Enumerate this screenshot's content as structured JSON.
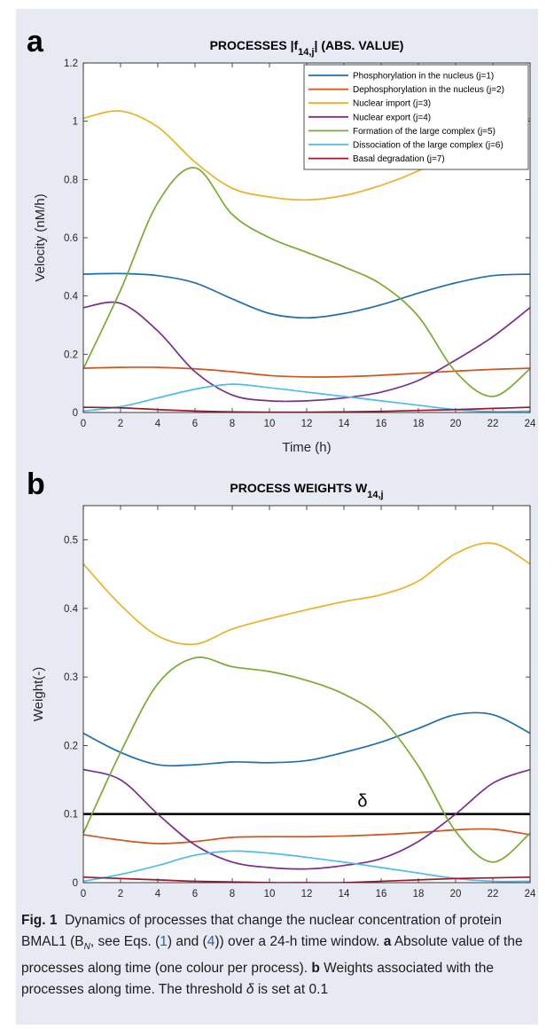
{
  "panels": [
    {
      "letter": "a",
      "title_prefix": "PROCESSES |f",
      "title_sub": "14,j",
      "title_suffix": "| (ABS. VALUE)"
    },
    {
      "letter": "b",
      "title_prefix": "PROCESS WEIGHTS W",
      "title_sub": "14,j",
      "title_suffix": ""
    }
  ],
  "caption": {
    "fig_label": "Fig. 1",
    "line1": "Dynamics of processes that change the nuclear concentration",
    "line2a": "of protein BMAL1 (B",
    "line2_sub": "N",
    "line2b": ", see Eqs. (",
    "ref1": "1",
    "line2c": ") and (",
    "ref2": "4",
    "line2d": ")) over a 24-h time window.",
    "a_label": "a",
    "a_text": "Absolute value of the processes along time (one colour per process).",
    "b_label": "b",
    "b_text": "Weights associated with the processes along time. The threshold",
    "b_delta": "δ",
    "b_text2": "is set at 0.1",
    "ref_color": "#2a5caa"
  },
  "chart_data": [
    {
      "type": "line",
      "title": "PROCESSES |f14,j| (ABS. VALUE)",
      "xlabel": "Time (h)",
      "ylabel": "Velocity (nM/h)",
      "xlim": [
        0,
        24
      ],
      "ylim": [
        0,
        1.2
      ],
      "xticks": [
        0,
        2,
        4,
        6,
        8,
        10,
        12,
        14,
        16,
        18,
        20,
        22,
        24
      ],
      "yticks": [
        0,
        0.2,
        0.4,
        0.6,
        0.8,
        1,
        1.2
      ],
      "ytick_labels": [
        "0",
        "0.2",
        "0.4",
        "0.6",
        "0.8",
        "1",
        "1.2"
      ],
      "legend_position": "top-right",
      "x": [
        0,
        2,
        4,
        6,
        8,
        10,
        12,
        14,
        16,
        18,
        20,
        22,
        24
      ],
      "series": [
        {
          "name": "Phosphorylation in the nucleus (j=1)",
          "color": "#1f6fb0",
          "values": [
            0.475,
            0.477,
            0.47,
            0.445,
            0.39,
            0.34,
            0.325,
            0.34,
            0.37,
            0.41,
            0.445,
            0.47,
            0.475
          ]
        },
        {
          "name": "Dephosphorylation in the nucleus (j=2)",
          "color": "#d2541e",
          "values": [
            0.152,
            0.155,
            0.155,
            0.15,
            0.14,
            0.127,
            0.122,
            0.123,
            0.128,
            0.135,
            0.142,
            0.148,
            0.152
          ]
        },
        {
          "name": "Nuclear import (j=3)",
          "color": "#eab12a",
          "values": [
            1.01,
            1.035,
            0.98,
            0.86,
            0.77,
            0.74,
            0.73,
            0.745,
            0.78,
            0.83,
            0.9,
            0.96,
            1.01
          ]
        },
        {
          "name": "Nuclear export (j=4)",
          "color": "#7b2e8e",
          "values": [
            0.36,
            0.375,
            0.28,
            0.14,
            0.06,
            0.04,
            0.04,
            0.05,
            0.07,
            0.11,
            0.18,
            0.26,
            0.36
          ]
        },
        {
          "name": "Formation of the large complex (j=5)",
          "color": "#78ab30",
          "values": [
            0.15,
            0.42,
            0.72,
            0.84,
            0.68,
            0.6,
            0.55,
            0.5,
            0.44,
            0.33,
            0.14,
            0.055,
            0.15
          ]
        },
        {
          "name": "Dissociation of the large complex (j=6)",
          "color": "#4cbde9",
          "values": [
            0.005,
            0.02,
            0.05,
            0.08,
            0.097,
            0.085,
            0.07,
            0.055,
            0.04,
            0.025,
            0.01,
            0.003,
            0.005
          ]
        },
        {
          "name": "Basal degradation (j=7)",
          "color": "#a3162c",
          "values": [
            0.018,
            0.016,
            0.01,
            0.005,
            0.002,
            0.001,
            0.001,
            0.002,
            0.004,
            0.007,
            0.01,
            0.014,
            0.018
          ]
        }
      ]
    },
    {
      "type": "line",
      "title": "PROCESS WEIGHTS W14,j",
      "xlabel": "Time (h)",
      "ylabel": "Weight(-)",
      "xlim": [
        0,
        24
      ],
      "ylim": [
        0,
        0.55
      ],
      "xticks": [
        0,
        2,
        4,
        6,
        8,
        10,
        12,
        14,
        16,
        18,
        20,
        22,
        24
      ],
      "yticks": [
        0,
        0.1,
        0.2,
        0.3,
        0.4,
        0.5
      ],
      "ytick_labels": [
        "0",
        "0.1",
        "0.2",
        "0.3",
        "0.4",
        "0.5"
      ],
      "threshold": {
        "value": 0.1,
        "label": "δ",
        "color": "#000000"
      },
      "x": [
        0,
        2,
        4,
        6,
        8,
        10,
        12,
        14,
        16,
        18,
        20,
        22,
        24
      ],
      "series": [
        {
          "name": "Phosphorylation in the nucleus (j=1)",
          "color": "#1f6fb0",
          "values": [
            0.218,
            0.19,
            0.172,
            0.172,
            0.176,
            0.175,
            0.178,
            0.19,
            0.205,
            0.225,
            0.245,
            0.245,
            0.218
          ]
        },
        {
          "name": "Dephosphorylation in the nucleus (j=2)",
          "color": "#d2541e",
          "values": [
            0.07,
            0.062,
            0.057,
            0.06,
            0.066,
            0.067,
            0.067,
            0.068,
            0.07,
            0.073,
            0.077,
            0.078,
            0.07
          ]
        },
        {
          "name": "Nuclear import (j=3)",
          "color": "#eab12a",
          "values": [
            0.465,
            0.405,
            0.36,
            0.348,
            0.37,
            0.385,
            0.398,
            0.41,
            0.42,
            0.44,
            0.48,
            0.495,
            0.465
          ]
        },
        {
          "name": "Nuclear export (j=4)",
          "color": "#7b2e8e",
          "values": [
            0.165,
            0.15,
            0.1,
            0.055,
            0.03,
            0.022,
            0.02,
            0.025,
            0.035,
            0.06,
            0.1,
            0.145,
            0.165
          ]
        },
        {
          "name": "Formation of the large complex (j=5)",
          "color": "#78ab30",
          "values": [
            0.072,
            0.19,
            0.29,
            0.328,
            0.315,
            0.308,
            0.295,
            0.275,
            0.24,
            0.17,
            0.075,
            0.03,
            0.072
          ]
        },
        {
          "name": "Dissociation of the large complex (j=6)",
          "color": "#4cbde9",
          "values": [
            0.002,
            0.012,
            0.025,
            0.04,
            0.046,
            0.043,
            0.037,
            0.03,
            0.022,
            0.014,
            0.006,
            0.002,
            0.002
          ]
        },
        {
          "name": "Basal degradation (j=7)",
          "color": "#a3162c",
          "values": [
            0.008,
            0.006,
            0.004,
            0.002,
            0.001,
            0.0,
            0.0,
            0.0,
            0.002,
            0.004,
            0.006,
            0.007,
            0.008
          ]
        }
      ]
    }
  ]
}
